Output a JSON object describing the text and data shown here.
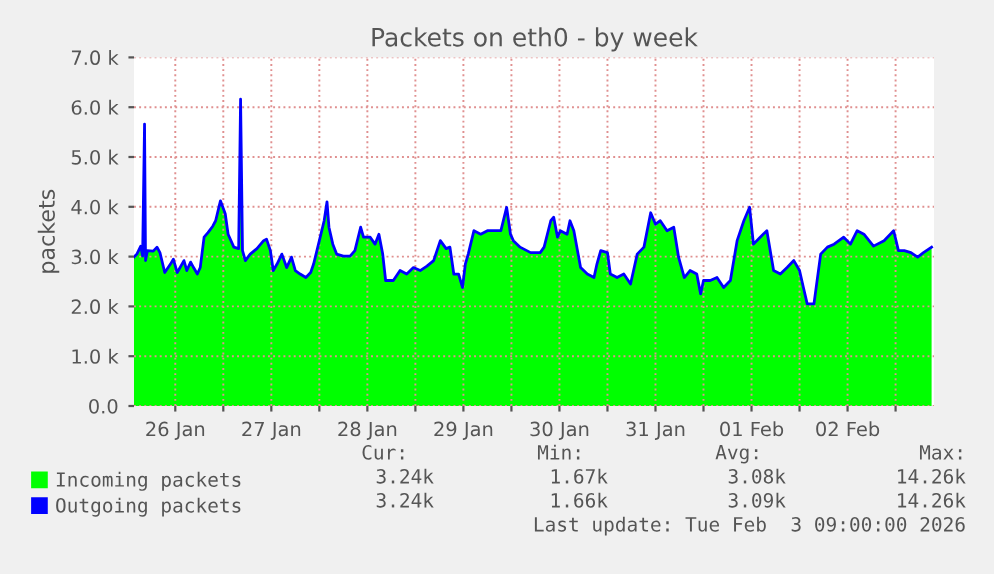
{
  "chart_data": {
    "type": "area",
    "title": "Packets on eth0 - by week",
    "ylabel": "packets",
    "x": [
      "2026-01-26T01:41",
      "2026-01-26T02:24",
      "2026-01-26T03:22",
      "2026-01-26T03:50",
      "2026-01-26T04:19",
      "2026-01-26T04:34",
      "2026-01-26T05:02",
      "2026-01-26T06:29",
      "2026-01-26T07:26",
      "2026-01-26T08:10",
      "2026-01-26T09:22",
      "2026-01-26T10:48",
      "2026-01-26T11:31",
      "2026-01-26T12:29",
      "2026-01-26T13:12",
      "2026-01-26T14:10",
      "2026-01-26T14:53",
      "2026-01-26T15:50",
      "2026-01-26T16:34",
      "2026-01-26T17:31",
      "2026-01-26T18:14",
      "2026-01-26T19:12",
      "2026-01-26T20:10",
      "2026-01-26T21:22",
      "2026-01-26T22:05",
      "2026-01-26T23:17",
      "2026-01-27T00:29",
      "2026-01-27T01:12",
      "2026-01-27T02:38",
      "2026-01-27T03:50",
      "2026-01-27T04:19",
      "2026-01-27T04:48",
      "2026-01-27T05:31",
      "2026-01-27T06:43",
      "2026-01-27T08:24",
      "2026-01-27T10:05",
      "2026-01-27T10:48",
      "2026-01-27T11:46",
      "2026-01-27T12:29",
      "2026-01-27T13:26",
      "2026-01-27T14:38",
      "2026-01-27T15:50",
      "2026-01-27T17:02",
      "2026-01-27T18:00",
      "2026-01-27T19:12",
      "2026-01-27T20:38",
      "2026-01-27T21:50",
      "2026-01-27T22:34",
      "2026-01-28T00:00",
      "2026-01-28T01:12",
      "2026-01-28T01:55",
      "2026-01-28T02:24",
      "2026-01-28T03:22",
      "2026-01-28T04:19",
      "2026-01-28T06:00",
      "2026-01-28T07:41",
      "2026-01-28T08:53",
      "2026-01-28T10:19",
      "2026-01-28T11:02",
      "2026-01-28T12:43",
      "2026-01-28T13:55",
      "2026-01-28T14:53",
      "2026-01-28T15:50",
      "2026-01-28T16:34",
      "2026-01-28T18:29",
      "2026-01-28T20:10",
      "2026-01-28T21:50",
      "2026-01-28T23:31",
      "2026-01-29T01:12",
      "2026-01-29T02:53",
      "2026-01-29T04:34",
      "2026-01-29T06:14",
      "2026-01-29T07:41",
      "2026-01-29T08:38",
      "2026-01-29T09:36",
      "2026-01-29T10:48",
      "2026-01-29T11:46",
      "2026-01-29T12:29",
      "2026-01-29T13:12",
      "2026-01-29T14:38",
      "2026-01-29T16:19",
      "2026-01-29T18:00",
      "2026-01-29T19:41",
      "2026-01-29T21:22",
      "2026-01-29T22:48",
      "2026-01-29T23:46",
      "2026-01-30T00:29",
      "2026-01-30T02:10",
      "2026-01-30T04:48",
      "2026-01-30T07:12",
      "2026-01-30T08:10",
      "2026-01-30T09:50",
      "2026-01-30T10:34",
      "2026-01-30T11:31",
      "2026-01-30T12:14",
      "2026-01-30T13:55",
      "2026-01-30T14:38",
      "2026-01-30T15:36",
      "2026-01-30T17:17",
      "2026-01-30T18:58",
      "2026-01-30T20:38",
      "2026-01-30T21:22",
      "2026-01-30T22:19",
      "2026-01-31T00:00",
      "2026-01-31T00:43",
      "2026-01-31T02:24",
      "2026-01-31T04:05",
      "2026-01-31T05:46",
      "2026-01-31T07:26",
      "2026-01-31T09:07",
      "2026-01-31T10:48",
      "2026-01-31T12:00",
      "2026-01-31T13:12",
      "2026-01-31T14:53",
      "2026-01-31T16:34",
      "2026-01-31T17:46",
      "2026-01-31T19:12",
      "2026-01-31T20:38",
      "2026-01-31T22:19",
      "2026-01-31T23:17",
      "2026-02-01T00:00",
      "2026-02-01T01:41",
      "2026-02-01T03:22",
      "2026-02-01T05:02",
      "2026-02-01T06:43",
      "2026-02-01T08:24",
      "2026-02-01T10:05",
      "2026-02-01T11:31",
      "2026-02-01T12:29",
      "2026-02-01T14:10",
      "2026-02-01T15:50",
      "2026-02-01T17:31",
      "2026-02-01T19:12",
      "2026-02-01T20:53",
      "2026-02-01T22:34",
      "2026-02-02T00:00",
      "2026-02-02T00:58",
      "2026-02-02T01:55",
      "2026-02-02T03:36",
      "2026-02-02T05:17",
      "2026-02-02T06:58",
      "2026-02-02T08:38",
      "2026-02-02T11:02",
      "2026-02-02T12:43",
      "2026-02-02T14:24",
      "2026-02-02T16:05",
      "2026-02-02T18:29",
      "2026-02-02T21:07",
      "2026-02-02T23:31",
      "2026-02-03T00:43",
      "2026-02-03T02:10",
      "2026-02-03T03:50",
      "2026-02-03T05:31",
      "2026-02-03T06:58",
      "2026-02-03T09:00"
    ],
    "series": [
      {
        "name": "Incoming packets",
        "color": "#00ff00",
        "values": [
          2990,
          3050,
          3210,
          3010,
          5660,
          2920,
          3120,
          3110,
          3190,
          3080,
          2680,
          2850,
          2950,
          2680,
          2780,
          2920,
          2720,
          2890,
          2780,
          2650,
          2780,
          3390,
          3480,
          3610,
          3720,
          4120,
          3860,
          3450,
          3190,
          3160,
          6160,
          3120,
          2920,
          3050,
          3160,
          3320,
          3350,
          3120,
          2720,
          2850,
          3050,
          2780,
          2990,
          2720,
          2650,
          2580,
          2680,
          2850,
          3320,
          3720,
          4100,
          3590,
          3250,
          3050,
          3010,
          3010,
          3120,
          3590,
          3390,
          3390,
          3250,
          3450,
          3050,
          2520,
          2520,
          2720,
          2650,
          2780,
          2720,
          2810,
          2920,
          3320,
          3160,
          3190,
          2650,
          2650,
          2380,
          2850,
          3050,
          3520,
          3450,
          3520,
          3520,
          3520,
          3990,
          3450,
          3320,
          3190,
          3080,
          3080,
          3190,
          3720,
          3790,
          3390,
          3520,
          3450,
          3720,
          3520,
          2780,
          2650,
          2580,
          2850,
          3120,
          3080,
          2650,
          2580,
          2650,
          2450,
          3050,
          3190,
          3880,
          3650,
          3720,
          3520,
          3590,
          2990,
          2580,
          2720,
          2650,
          2250,
          2520,
          2520,
          2580,
          2380,
          2520,
          3320,
          3720,
          3990,
          3250,
          3390,
          3520,
          2720,
          2650,
          2780,
          2920,
          2720,
          2380,
          2050,
          2050,
          3050,
          3190,
          3250,
          3390,
          3250,
          3520,
          3450,
          3210,
          3320,
          3520,
          3120,
          3120,
          3080,
          2990,
          3080,
          3190
        ]
      },
      {
        "name": "Outgoing packets",
        "type": "line",
        "color": "#0000ff",
        "values": [
          2990,
          3050,
          3210,
          3010,
          5660,
          2920,
          3120,
          3110,
          3190,
          3080,
          2680,
          2850,
          2950,
          2680,
          2780,
          2920,
          2720,
          2890,
          2780,
          2650,
          2780,
          3390,
          3480,
          3610,
          3720,
          4120,
          3860,
          3450,
          3190,
          3160,
          6160,
          3120,
          2920,
          3050,
          3160,
          3320,
          3350,
          3120,
          2720,
          2850,
          3050,
          2780,
          2990,
          2720,
          2650,
          2580,
          2680,
          2850,
          3320,
          3720,
          4100,
          3590,
          3250,
          3050,
          3010,
          3010,
          3120,
          3590,
          3390,
          3390,
          3250,
          3450,
          3050,
          2520,
          2520,
          2720,
          2650,
          2780,
          2720,
          2810,
          2920,
          3320,
          3160,
          3190,
          2650,
          2650,
          2380,
          2850,
          3050,
          3520,
          3450,
          3520,
          3520,
          3520,
          3990,
          3450,
          3320,
          3190,
          3080,
          3080,
          3190,
          3720,
          3790,
          3390,
          3520,
          3450,
          3720,
          3520,
          2780,
          2650,
          2580,
          2850,
          3120,
          3080,
          2650,
          2580,
          2650,
          2450,
          3050,
          3190,
          3880,
          3650,
          3720,
          3520,
          3590,
          2990,
          2580,
          2720,
          2650,
          2250,
          2520,
          2520,
          2580,
          2380,
          2520,
          3320,
          3720,
          3990,
          3250,
          3390,
          3520,
          2720,
          2650,
          2780,
          2920,
          2720,
          2380,
          2050,
          2050,
          3050,
          3190,
          3250,
          3390,
          3250,
          3520,
          3450,
          3210,
          3320,
          3520,
          3120,
          3120,
          3080,
          2990,
          3080,
          3190
        ]
      }
    ],
    "xlim": [
      "2026-01-26T01:41",
      "2026-02-03T09:36"
    ],
    "xticks": [
      {
        "value": "2026-01-26T12:00",
        "label": "26 Jan"
      },
      {
        "value": "2026-01-27",
        "label": null
      },
      {
        "value": "2026-01-27T12:00",
        "label": "27 Jan"
      },
      {
        "value": "2026-01-28",
        "label": null
      },
      {
        "value": "2026-01-28T12:00",
        "label": "28 Jan"
      },
      {
        "value": "2026-01-29",
        "label": null
      },
      {
        "value": "2026-01-29T12:00",
        "label": "29 Jan"
      },
      {
        "value": "2026-01-30",
        "label": null
      },
      {
        "value": "2026-01-30T12:00",
        "label": "30 Jan"
      },
      {
        "value": "2026-01-31",
        "label": null
      },
      {
        "value": "2026-01-31T12:00",
        "label": "31 Jan"
      },
      {
        "value": "2026-02-01",
        "label": null
      },
      {
        "value": "2026-02-01T12:00",
        "label": "01 Feb"
      },
      {
        "value": "2026-02-02",
        "label": null
      },
      {
        "value": "2026-02-02T12:00",
        "label": "02 Feb"
      },
      {
        "value": "2026-02-03",
        "label": null
      }
    ],
    "ylim": [
      0,
      7000
    ],
    "yticks": [
      {
        "value": 0,
        "label": "0.0"
      },
      {
        "value": 1000,
        "label": "1.0 k"
      },
      {
        "value": 2000,
        "label": "2.0 k"
      },
      {
        "value": 3000,
        "label": "3.0 k"
      },
      {
        "value": 4000,
        "label": "4.0 k"
      },
      {
        "value": 5000,
        "label": "5.0 k"
      },
      {
        "value": 6000,
        "label": "6.0 k"
      },
      {
        "value": 7000,
        "label": "7.0 k"
      }
    ],
    "grid": true,
    "legend": "bottom",
    "annotations": [
      "Cur:",
      "Min:",
      "Avg:",
      "Max:",
      "3.24k",
      "1.67k",
      "3.08k",
      "14.26k",
      "3.24k",
      "1.66k",
      "3.09k",
      "14.26k",
      "Last update: Tue Feb  3 09:00:00 2026"
    ]
  }
}
